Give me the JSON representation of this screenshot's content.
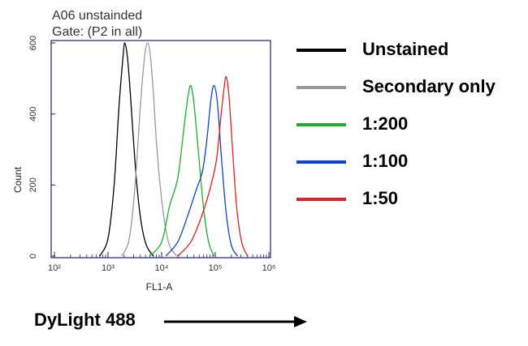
{
  "chart_data": {
    "type": "area",
    "title": "A06 unstainded",
    "subtitle": "Gate: (P2 in all)",
    "xlabel": "FL1-A",
    "ylabel": "Count",
    "x_scale": "log",
    "xlim": [
      100,
      1000000
    ],
    "ylim": [
      0,
      600
    ],
    "x_ticks": [
      "10²",
      "10³",
      "10⁴",
      "10⁵",
      "10⁶"
    ],
    "y_ticks": [
      "0",
      "200",
      "400",
      "600"
    ],
    "grid": false,
    "legend_position": "right",
    "series": [
      {
        "name": "Unstained",
        "color": "#000000",
        "peak": 2100,
        "log_width": 0.2,
        "points": [
          [
            700,
            0
          ],
          [
            1000,
            50
          ],
          [
            1300,
            200
          ],
          [
            1600,
            420
          ],
          [
            1900,
            560
          ],
          [
            2050,
            600
          ],
          [
            2300,
            560
          ],
          [
            2600,
            460
          ],
          [
            3000,
            320
          ],
          [
            3500,
            190
          ],
          [
            4200,
            90
          ],
          [
            5200,
            30
          ],
          [
            7000,
            0
          ]
        ]
      },
      {
        "name": "Secondary only",
        "color": "#999999",
        "peak": 5600,
        "log_width": 0.2,
        "points": [
          [
            1800,
            0
          ],
          [
            2500,
            50
          ],
          [
            3200,
            200
          ],
          [
            4000,
            420
          ],
          [
            4800,
            560
          ],
          [
            5500,
            600
          ],
          [
            6200,
            560
          ],
          [
            7000,
            460
          ],
          [
            8000,
            320
          ],
          [
            9500,
            190
          ],
          [
            11500,
            90
          ],
          [
            14000,
            30
          ],
          [
            19000,
            0
          ]
        ]
      },
      {
        "name": "1:200",
        "color": "#22aa33",
        "peak": 36000,
        "log_width": 0.22,
        "points": [
          [
            6000,
            0
          ],
          [
            10000,
            40
          ],
          [
            14000,
            140
          ],
          [
            20000,
            220
          ],
          [
            26000,
            360
          ],
          [
            31000,
            450
          ],
          [
            35000,
            480
          ],
          [
            40000,
            430
          ],
          [
            48000,
            300
          ],
          [
            60000,
            140
          ],
          [
            75000,
            40
          ],
          [
            95000,
            0
          ]
        ]
      },
      {
        "name": "1:100",
        "color": "#1144cc",
        "peak": 95000,
        "log_width": 0.22,
        "points": [
          [
            12000,
            0
          ],
          [
            20000,
            40
          ],
          [
            30000,
            110
          ],
          [
            45000,
            190
          ],
          [
            58000,
            240
          ],
          [
            70000,
            330
          ],
          [
            83000,
            440
          ],
          [
            95000,
            480
          ],
          [
            110000,
            430
          ],
          [
            130000,
            280
          ],
          [
            160000,
            120
          ],
          [
            200000,
            30
          ],
          [
            260000,
            0
          ]
        ]
      },
      {
        "name": "1:50",
        "color": "#dd2222",
        "peak": 160000,
        "log_width": 0.2,
        "points": [
          [
            20000,
            0
          ],
          [
            35000,
            40
          ],
          [
            55000,
            110
          ],
          [
            80000,
            190
          ],
          [
            105000,
            270
          ],
          [
            125000,
            380
          ],
          [
            145000,
            470
          ],
          [
            160000,
            505
          ],
          [
            180000,
            450
          ],
          [
            210000,
            300
          ],
          [
            250000,
            140
          ],
          [
            310000,
            40
          ],
          [
            400000,
            0
          ]
        ]
      }
    ],
    "footer": {
      "label": "DyLight 488"
    }
  }
}
